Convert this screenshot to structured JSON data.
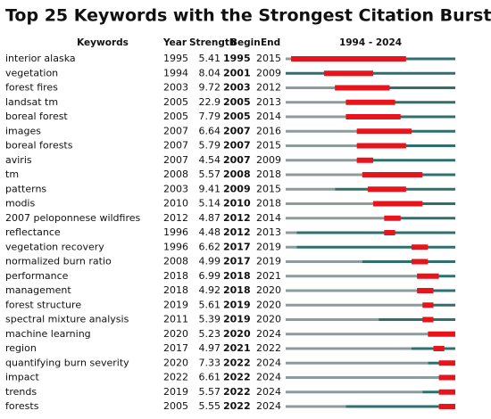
{
  "chart_data": {
    "type": "burst",
    "title": "Top 25 Keywords with the Strongest Citation Bursts",
    "columns": [
      "Keywords",
      "Year",
      "Strength",
      "Begin",
      "End"
    ],
    "timeline_label": "1994 - 2024",
    "xlim": [
      1994,
      2024
    ],
    "colors": {
      "before": "#8c9c9c",
      "active": "#2e7070",
      "burst": "#e8141c"
    },
    "rows": [
      {
        "keyword": "interior alaska",
        "year": 1995,
        "strength": 5.41,
        "begin": 1995,
        "end": 2015
      },
      {
        "keyword": "vegetation",
        "year": 1994,
        "strength": 8.04,
        "begin": 2001,
        "end": 2009
      },
      {
        "keyword": "forest fires",
        "year": 2003,
        "strength": 9.72,
        "begin": 2003,
        "end": 2012
      },
      {
        "keyword": "landsat tm",
        "year": 2005,
        "strength": 22.9,
        "begin": 2005,
        "end": 2013
      },
      {
        "keyword": "boreal forest",
        "year": 2005,
        "strength": 7.79,
        "begin": 2005,
        "end": 2014
      },
      {
        "keyword": "images",
        "year": 2007,
        "strength": 6.64,
        "begin": 2007,
        "end": 2016
      },
      {
        "keyword": "boreal forests",
        "year": 2007,
        "strength": 5.79,
        "begin": 2007,
        "end": 2015
      },
      {
        "keyword": "aviris",
        "year": 2007,
        "strength": 4.54,
        "begin": 2007,
        "end": 2009
      },
      {
        "keyword": "tm",
        "year": 2008,
        "strength": 5.57,
        "begin": 2008,
        "end": 2018
      },
      {
        "keyword": "patterns",
        "year": 2003,
        "strength": 9.41,
        "begin": 2009,
        "end": 2015
      },
      {
        "keyword": "modis",
        "year": 2010,
        "strength": 5.14,
        "begin": 2010,
        "end": 2018
      },
      {
        "keyword": "2007 peloponnese wildfires",
        "year": 2012,
        "strength": 4.87,
        "begin": 2012,
        "end": 2014
      },
      {
        "keyword": "reflectance",
        "year": 1996,
        "strength": 4.48,
        "begin": 2012,
        "end": 2013
      },
      {
        "keyword": "vegetation recovery",
        "year": 1996,
        "strength": 6.62,
        "begin": 2017,
        "end": 2019
      },
      {
        "keyword": "normalized burn ratio",
        "year": 2008,
        "strength": 4.99,
        "begin": 2017,
        "end": 2019
      },
      {
        "keyword": "performance",
        "year": 2018,
        "strength": 6.99,
        "begin": 2018,
        "end": 2021
      },
      {
        "keyword": "management",
        "year": 2018,
        "strength": 4.92,
        "begin": 2018,
        "end": 2020
      },
      {
        "keyword": "forest structure",
        "year": 2019,
        "strength": 5.61,
        "begin": 2019,
        "end": 2020
      },
      {
        "keyword": "spectral mixture analysis",
        "year": 2011,
        "strength": 5.39,
        "begin": 2019,
        "end": 2020
      },
      {
        "keyword": "machine learning",
        "year": 2020,
        "strength": 5.23,
        "begin": 2020,
        "end": 2024
      },
      {
        "keyword": "region",
        "year": 2017,
        "strength": 4.97,
        "begin": 2021,
        "end": 2022
      },
      {
        "keyword": "quantifying burn severity",
        "year": 2020,
        "strength": 7.33,
        "begin": 2022,
        "end": 2024
      },
      {
        "keyword": "impact",
        "year": 2022,
        "strength": 6.61,
        "begin": 2022,
        "end": 2024
      },
      {
        "keyword": "trends",
        "year": 2019,
        "strength": 5.57,
        "begin": 2022,
        "end": 2024
      },
      {
        "keyword": "forests",
        "year": 2005,
        "strength": 5.55,
        "begin": 2022,
        "end": 2024
      }
    ]
  }
}
